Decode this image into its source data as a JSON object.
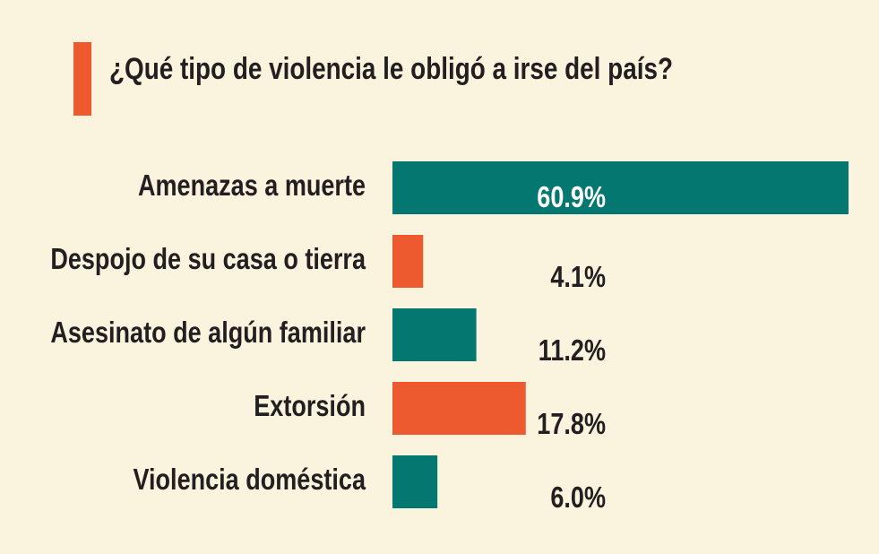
{
  "colors": {
    "background": "#faf3de",
    "accent": "#ee5a2f",
    "teal": "#057771",
    "text": "#231f20"
  },
  "chart_data": {
    "type": "bar",
    "orientation": "horizontal",
    "title": "¿Qué tipo de violencia le obligó a irse del país?",
    "categories": [
      "Amenazas a muerte",
      "Despojo de su casa o tierra",
      "Asesinato de algún familiar",
      "Extorsión",
      "Violencia doméstica"
    ],
    "values": [
      60.9,
      4.1,
      11.2,
      17.8,
      6.0
    ],
    "value_labels": [
      "60.9%",
      "4.1%",
      "11.2%",
      "17.8%",
      "6.0%"
    ],
    "bar_colors": [
      "#057771",
      "#ee5a2f",
      "#057771",
      "#ee5a2f",
      "#057771"
    ],
    "xlim": [
      0,
      60.9
    ],
    "grid": false,
    "legend": "none"
  }
}
